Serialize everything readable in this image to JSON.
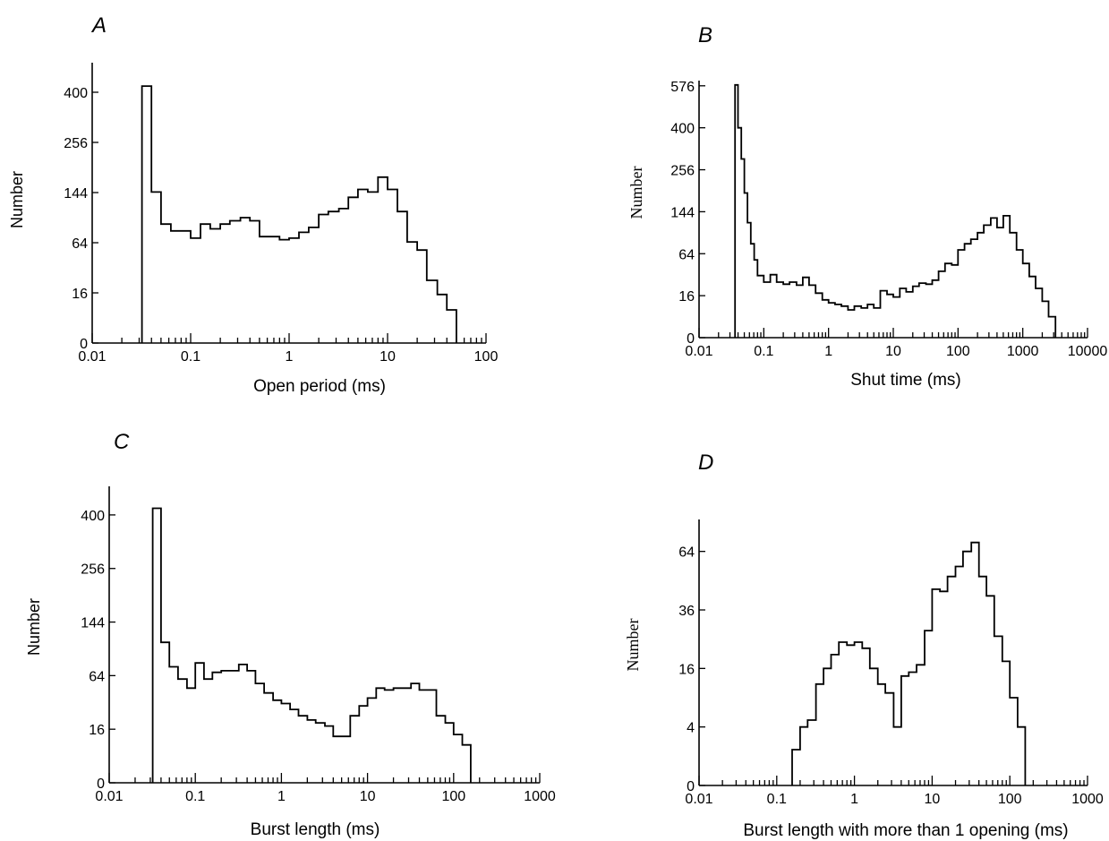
{
  "chart_data": [
    {
      "panel": "A",
      "type": "histogram",
      "xlabel": "Open period (ms)",
      "ylabel": "Number",
      "x_scale": "log",
      "y_scale": "sqrt",
      "xlim": [
        0.01,
        100
      ],
      "ylim": [
        0,
        484
      ],
      "x_ticks": [
        0.01,
        0.1,
        1,
        10,
        100
      ],
      "x_tick_labels": [
        "0.01",
        "0.1",
        "1",
        "10",
        "100"
      ],
      "y_ticks": [
        0,
        16,
        64,
        144,
        256,
        400
      ],
      "y_tick_labels": [
        "0",
        "16",
        "64",
        "144",
        "256",
        "400"
      ],
      "bin_edges": [
        0.032,
        0.04,
        0.05,
        0.063,
        0.08,
        0.1,
        0.126,
        0.158,
        0.2,
        0.25,
        0.32,
        0.4,
        0.5,
        0.63,
        0.8,
        1.0,
        1.26,
        1.58,
        2.0,
        2.5,
        3.2,
        4.0,
        5.0,
        6.3,
        8.0,
        10.0,
        12.6,
        15.8,
        20.0,
        25.0,
        32.0,
        40.0,
        50.0
      ],
      "counts": [
        420,
        145,
        90,
        80,
        80,
        70,
        90,
        83,
        90,
        95,
        100,
        95,
        72,
        72,
        68,
        70,
        78,
        85,
        105,
        110,
        115,
        135,
        150,
        145,
        175,
        150,
        110,
        65,
        55,
        25,
        15,
        7
      ]
    },
    {
      "panel": "B",
      "type": "histogram",
      "xlabel": "Shut time (ms)",
      "ylabel": "Number",
      "x_scale": "log",
      "y_scale": "sqrt",
      "xlim": [
        0.01,
        10000
      ],
      "ylim": [
        0,
        600
      ],
      "x_ticks": [
        0.01,
        0.1,
        1,
        10,
        100,
        1000,
        10000
      ],
      "x_tick_labels": [
        "0.01",
        "0.1",
        "1",
        "10",
        "100",
        "1000",
        "10000"
      ],
      "y_ticks": [
        0,
        16,
        64,
        144,
        256,
        400,
        576
      ],
      "y_tick_labels": [
        "0",
        "16",
        "64",
        "144",
        "256",
        "400",
        "576"
      ],
      "bin_edges": [
        0.036,
        0.04,
        0.045,
        0.05,
        0.056,
        0.063,
        0.071,
        0.08,
        0.1,
        0.126,
        0.158,
        0.2,
        0.25,
        0.32,
        0.4,
        0.5,
        0.63,
        0.8,
        1.0,
        1.26,
        1.58,
        2.0,
        2.5,
        3.2,
        4.0,
        5.0,
        6.3,
        8.0,
        10.0,
        12.6,
        15.8,
        20.0,
        25.0,
        32.0,
        40.0,
        50.0,
        63.0,
        80.0,
        100.0,
        126.0,
        158.0,
        200.0,
        250.0,
        320.0,
        400.0,
        500.0,
        630.0,
        800.0,
        1000.0,
        1260.0,
        1580.0,
        2000.0,
        2500.0,
        3200.0
      ],
      "counts": [
        580,
        400,
        290,
        190,
        120,
        80,
        55,
        35,
        28,
        36,
        28,
        26,
        28,
        25,
        33,
        25,
        18,
        13,
        11,
        10,
        9,
        7,
        9,
        8,
        10,
        8,
        20,
        17,
        15,
        22,
        19,
        24,
        27,
        26,
        30,
        40,
        50,
        48,
        70,
        80,
        88,
        100,
        115,
        130,
        110,
        135,
        100,
        70,
        50,
        34,
        22,
        12,
        4
      ]
    },
    {
      "panel": "C",
      "type": "histogram",
      "xlabel": "Burst length (ms)",
      "ylabel": "Number",
      "x_scale": "log",
      "y_scale": "sqrt",
      "xlim": [
        0.01,
        1000
      ],
      "ylim": [
        0,
        484
      ],
      "x_ticks": [
        0.01,
        0.1,
        1,
        10,
        100,
        1000
      ],
      "x_tick_labels": [
        "0.01",
        "0.1",
        "1",
        "10",
        "100",
        "1000"
      ],
      "y_ticks": [
        0,
        16,
        64,
        144,
        256,
        400
      ],
      "y_tick_labels": [
        "0",
        "16",
        "64",
        "144",
        "256",
        "400"
      ],
      "bin_edges": [
        0.032,
        0.04,
        0.05,
        0.063,
        0.08,
        0.1,
        0.126,
        0.158,
        0.2,
        0.25,
        0.32,
        0.4,
        0.5,
        0.63,
        0.8,
        1.0,
        1.26,
        1.58,
        2.0,
        2.5,
        3.2,
        4.0,
        5.0,
        6.3,
        8.0,
        10.0,
        12.6,
        15.8,
        20.0,
        25.0,
        32.0,
        40.0,
        50.0,
        63.0,
        80.0,
        100.0,
        126.0,
        158.0
      ],
      "counts": [
        420,
        110,
        75,
        60,
        50,
        80,
        60,
        68,
        70,
        70,
        78,
        70,
        55,
        45,
        38,
        35,
        30,
        25,
        22,
        20,
        18,
        12,
        12,
        25,
        33,
        40,
        50,
        48,
        50,
        50,
        55,
        48,
        48,
        25,
        20,
        13,
        8
      ]
    },
    {
      "panel": "D",
      "type": "histogram",
      "xlabel": "Burst length with more than 1 opening (ms)",
      "ylabel": "Number",
      "x_scale": "log",
      "y_scale": "sqrt",
      "xlim": [
        0.01,
        1000
      ],
      "ylim": [
        0,
        81
      ],
      "x_ticks": [
        0.01,
        0.1,
        1,
        10,
        100,
        1000
      ],
      "x_tick_labels": [
        "0.01",
        "0.1",
        "1",
        "10",
        "100",
        "1000"
      ],
      "y_ticks": [
        0,
        4,
        16,
        36,
        64
      ],
      "y_tick_labels": [
        "0",
        "4",
        "16",
        "36",
        "64"
      ],
      "bin_edges": [
        0.158,
        0.2,
        0.25,
        0.32,
        0.4,
        0.5,
        0.63,
        0.8,
        1.0,
        1.26,
        1.58,
        2.0,
        2.5,
        3.2,
        4.0,
        5.0,
        6.3,
        8.0,
        10.0,
        12.6,
        15.8,
        20.0,
        25.0,
        32.0,
        40.0,
        50.0,
        63.0,
        80.0,
        100.0,
        126.0,
        158.0
      ],
      "counts": [
        1.5,
        4,
        5,
        12,
        16,
        20,
        24,
        23,
        24,
        22,
        16,
        12,
        10,
        4,
        14,
        15,
        17,
        28,
        45,
        44,
        51,
        56,
        64,
        69,
        51,
        42,
        26,
        18,
        9,
        4
      ]
    }
  ]
}
